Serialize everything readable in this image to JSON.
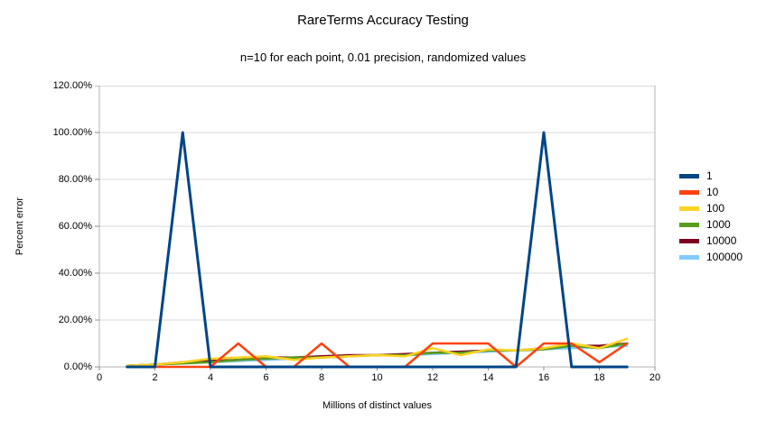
{
  "title": "RareTerms Accuracy Testing",
  "subtitle": "n=10 for each point, 0.01 precision, randomized values",
  "x_axis": {
    "title": "Millions of distinct values",
    "min": 0,
    "max": 20,
    "tick_values": [
      0,
      2,
      4,
      6,
      8,
      10,
      12,
      14,
      16,
      18,
      20
    ]
  },
  "y_axis": {
    "title": "Percent error",
    "min": 0,
    "max": 120,
    "tick_values": [
      0,
      20,
      40,
      60,
      80,
      100,
      120
    ],
    "tick_labels": [
      "0.00%",
      "20.00%",
      "40.00%",
      "60.00%",
      "80.00%",
      "100.00%",
      "120.00%"
    ]
  },
  "style_colors": {
    "grid": "#d9d9d9",
    "plot_border": "#b3b3b3",
    "tick": "#8c8c8c"
  },
  "chart_data": {
    "type": "line",
    "title": "RareTerms Accuracy Testing",
    "subtitle": "n=10 for each point, 0.01 precision, randomized values",
    "xlabel": "Millions of distinct values",
    "ylabel": "Percent error",
    "xlim": [
      0,
      20
    ],
    "ylim": [
      0,
      120
    ],
    "y_unit": "percent",
    "grid": "horizontal",
    "legend_position": "right",
    "x": [
      1,
      2,
      3,
      4,
      5,
      6,
      7,
      8,
      9,
      10,
      11,
      12,
      13,
      14,
      15,
      16,
      17,
      18,
      19
    ],
    "series": [
      {
        "name": "1",
        "color": "#004586",
        "values": [
          0,
          0,
          100,
          0,
          0,
          0,
          0,
          0,
          0,
          0,
          0,
          0,
          0,
          0,
          0,
          100,
          0,
          0,
          0
        ]
      },
      {
        "name": "10",
        "color": "#ff420e",
        "values": [
          0,
          0,
          0,
          0,
          10,
          0,
          0,
          10,
          0,
          0,
          0,
          10,
          10,
          10,
          0,
          10,
          10,
          2,
          10
        ]
      },
      {
        "name": "100",
        "color": "#ffd320",
        "values": [
          0.5,
          1,
          2,
          3.5,
          4,
          4.5,
          3,
          4,
          4.5,
          5,
          4.5,
          8,
          5,
          7.5,
          7,
          8,
          10,
          8,
          12
        ]
      },
      {
        "name": "1000",
        "color": "#579d1c",
        "values": [
          0.5,
          1,
          1.5,
          2,
          3,
          3.5,
          4,
          4,
          4.5,
          5,
          5,
          6,
          6,
          7,
          7,
          7.5,
          9,
          8,
          10
        ]
      },
      {
        "name": "10000",
        "color": "#7e0021",
        "values": [
          0.5,
          1,
          2,
          2.5,
          3,
          4,
          4,
          4.5,
          5,
          5,
          5.5,
          6,
          6.5,
          7,
          7,
          8,
          9,
          9,
          10
        ]
      },
      {
        "name": "100000",
        "color": "#83caff",
        "values": [
          0.5,
          1,
          1.5,
          2,
          2.5,
          3,
          3.5,
          4,
          4.5,
          5,
          5,
          5.5,
          6,
          6.5,
          7,
          7.5,
          8,
          8.5,
          9
        ]
      }
    ]
  }
}
